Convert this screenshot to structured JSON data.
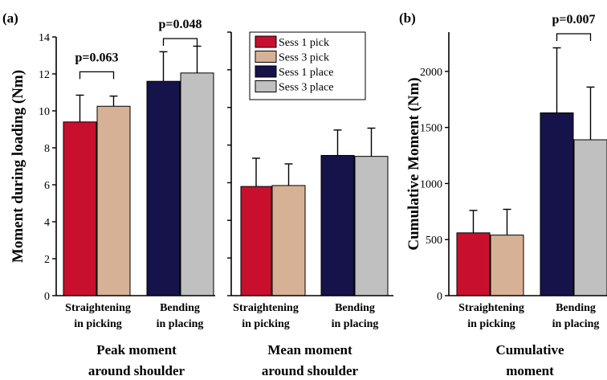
{
  "colors": {
    "sess1_pick": "#c8102e",
    "sess3_pick": "#d7b196",
    "sess1_place": "#15134a",
    "sess3_place": "#c0c0c0"
  },
  "legend": [
    {
      "label": "Sess 1 pick",
      "color_key": "sess1_pick"
    },
    {
      "label": "Sess 3 pick",
      "color_key": "sess3_pick"
    },
    {
      "label": "Sess 1 place",
      "color_key": "sess1_place"
    },
    {
      "label": "Sess 3 place",
      "color_key": "sess3_place"
    }
  ],
  "chart_data": [
    {
      "type": "bar",
      "panel": "(a)",
      "ylabel": "Moment during loading (Nm)",
      "ylim": [
        0,
        14
      ],
      "yticks": [
        0,
        2,
        4,
        6,
        8,
        10,
        12,
        14
      ],
      "group_label": [
        "Peak moment",
        "around shoulder"
      ],
      "categories": [
        [
          "Straightening",
          "in picking"
        ],
        [
          "Bending",
          "in placing"
        ]
      ],
      "bars": [
        {
          "category": 0,
          "series": "Sess 1 pick",
          "color_key": "sess1_pick",
          "value": 9.4,
          "error": 1.45
        },
        {
          "category": 0,
          "series": "Sess 3 pick",
          "color_key": "sess3_pick",
          "value": 10.25,
          "error": 0.55
        },
        {
          "category": 1,
          "series": "Sess 1 place",
          "color_key": "sess1_place",
          "value": 11.6,
          "error": 1.6
        },
        {
          "category": 1,
          "series": "Sess 3 place",
          "color_key": "sess3_place",
          "value": 12.05,
          "error": 1.45
        }
      ],
      "annotations": [
        {
          "text": "p=0.063",
          "bars": [
            0,
            1
          ],
          "bracket_y": 12.2
        },
        {
          "text": "p=0.048",
          "bars": [
            2,
            3
          ],
          "bracket_y": 14.0
        }
      ]
    },
    {
      "type": "bar",
      "ylim": [
        0,
        14
      ],
      "group_label": [
        "Mean moment",
        "around shoulder"
      ],
      "categories": [
        [
          "Straightening",
          "in picking"
        ],
        [
          "Bending",
          "in placing"
        ]
      ],
      "bars": [
        {
          "category": 0,
          "series": "Sess 1 pick",
          "color_key": "sess1_pick",
          "value": 5.8,
          "error": 1.5
        },
        {
          "category": 0,
          "series": "Sess 3 pick",
          "color_key": "sess3_pick",
          "value": 5.85,
          "error": 1.15
        },
        {
          "category": 1,
          "series": "Sess 1 place",
          "color_key": "sess1_place",
          "value": 7.45,
          "error": 1.35
        },
        {
          "category": 1,
          "series": "Sess 3 place",
          "color_key": "sess3_place",
          "value": 7.4,
          "error": 1.5
        }
      ],
      "annotations": []
    },
    {
      "type": "bar",
      "panel": "(b)",
      "ylabel": "Cumulative Moment (Nm)",
      "ylim": [
        0,
        2350
      ],
      "yticks": [
        0,
        500,
        1000,
        1500,
        2000
      ],
      "group_label": [
        "Cumulative",
        "moment"
      ],
      "categories": [
        [
          "Straightening",
          "in picking"
        ],
        [
          "Bending",
          "in placing"
        ]
      ],
      "bars": [
        {
          "category": 0,
          "series": "Sess 1 pick",
          "color_key": "sess1_pick",
          "value": 560,
          "error": 200
        },
        {
          "category": 0,
          "series": "Sess 3 pick",
          "color_key": "sess3_pick",
          "value": 540,
          "error": 230
        },
        {
          "category": 1,
          "series": "Sess 1 place",
          "color_key": "sess1_place",
          "value": 1630,
          "error": 580
        },
        {
          "category": 1,
          "series": "Sess 3 place",
          "color_key": "sess3_place",
          "value": 1390,
          "error": 470
        }
      ],
      "annotations": [
        {
          "text": "p=0.007",
          "bars": [
            2,
            3
          ],
          "bracket_y": 2350
        }
      ]
    }
  ]
}
